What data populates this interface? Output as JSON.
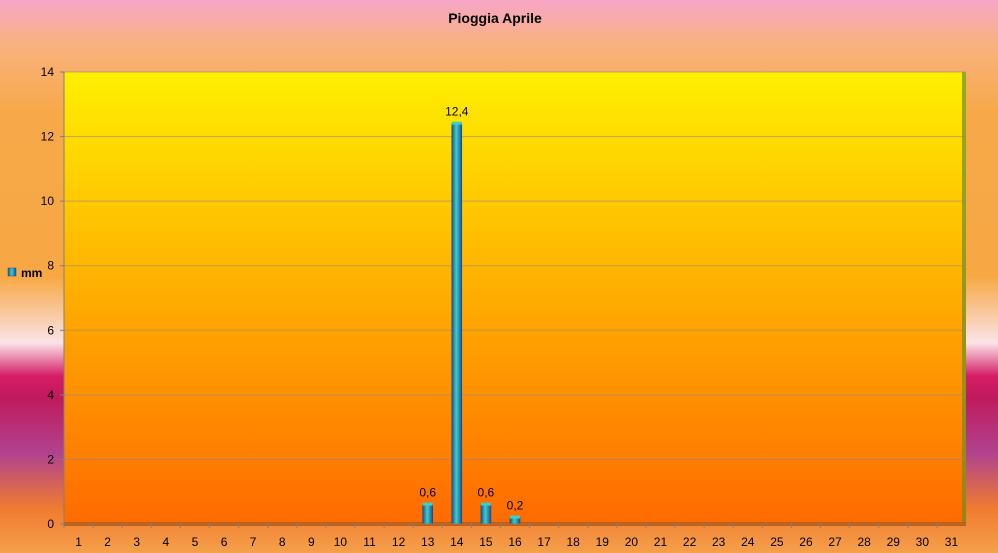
{
  "chart_data": {
    "type": "bar",
    "title": "Pioggia Aprile",
    "categories": [
      "1",
      "2",
      "3",
      "4",
      "5",
      "6",
      "7",
      "8",
      "9",
      "10",
      "11",
      "12",
      "13",
      "14",
      "15",
      "16",
      "17",
      "18",
      "19",
      "20",
      "21",
      "22",
      "23",
      "24",
      "25",
      "26",
      "27",
      "28",
      "29",
      "30",
      "31"
    ],
    "series": [
      {
        "name": "mm",
        "values": [
          0,
          0,
          0,
          0,
          0,
          0,
          0,
          0,
          0,
          0,
          0,
          0,
          0.6,
          12.4,
          0.6,
          0.2,
          0,
          0,
          0,
          0,
          0,
          0,
          0,
          0,
          0,
          0,
          0,
          0,
          0,
          0,
          0
        ],
        "data_labels": [
          "",
          "",
          "",
          "",
          "",
          "",
          "",
          "",
          "",
          "",
          "",
          "",
          "0,6",
          "12,4",
          "0,6",
          "0,2",
          "",
          "",
          "",
          "",
          "",
          "",
          "",
          "",
          "",
          "",
          "",
          "",
          "",
          "",
          ""
        ]
      }
    ],
    "y_ticks": [
      "0",
      "2",
      "4",
      "6",
      "8",
      "10",
      "12",
      "14"
    ],
    "ylim": [
      0,
      14
    ],
    "grid": true,
    "legend": "left",
    "colors": {
      "plot_top": "#ffef00",
      "plot_bottom": "#ff6a00",
      "bar_light": "#3ccfc4",
      "bar_dark": "#1a4f9a"
    }
  }
}
